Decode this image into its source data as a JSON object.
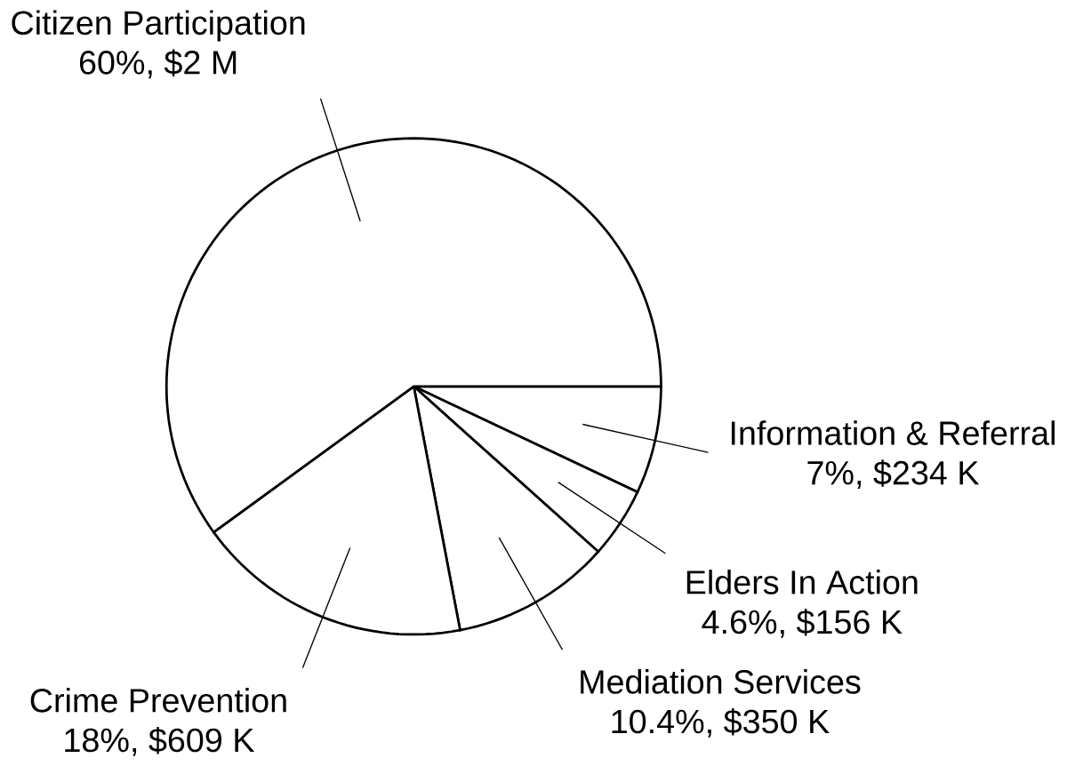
{
  "chart_data": {
    "type": "pie",
    "categories": [
      "Information & Referral",
      "Elders In Action",
      "Mediation Services",
      "Crime Prevention",
      "Citizen Participation"
    ],
    "values": [
      7,
      4.6,
      10.4,
      18,
      60
    ],
    "value_labels": [
      "7%, $234 K",
      "4.6%, $156 K",
      "10.4%, $350 K",
      "18%, $609 K",
      "60%, $2 M"
    ],
    "colors": [
      "#ffffff",
      "#ffffff",
      "#ffffff",
      "#ffffff",
      "#ffffff"
    ]
  }
}
